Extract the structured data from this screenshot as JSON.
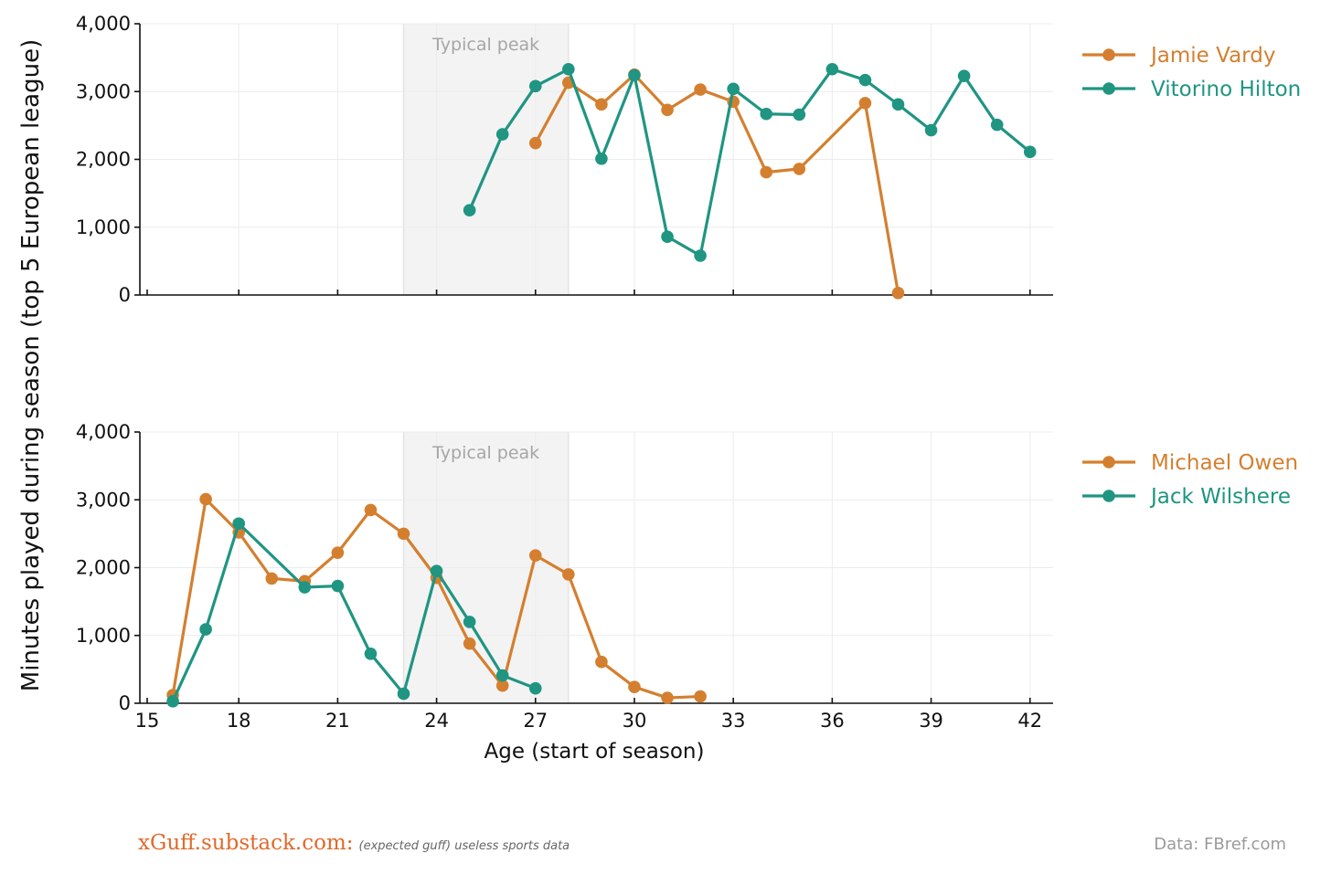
{
  "chart_data": [
    {
      "type": "line",
      "panel": "top",
      "title": "",
      "xlabel": "",
      "ylabel": "Minutes played during season (top 5 European league)",
      "xlim": [
        15,
        42.7
      ],
      "ylim": [
        0,
        4000
      ],
      "x_ticks": [
        15,
        18,
        21,
        24,
        27,
        30,
        33,
        36,
        39,
        42
      ],
      "y_ticks": [
        0,
        1000,
        2000,
        3000,
        4000
      ],
      "y_tick_labels": [
        "0",
        "1,000",
        "2,000",
        "3,000",
        "4,000"
      ],
      "grid": true,
      "legend_position": "right",
      "peak_band": {
        "x_start": 23,
        "x_end": 28,
        "label": "Typical peak"
      },
      "series": [
        {
          "name": "Jamie Vardy",
          "color": "#d47f2f",
          "x": [
            27,
            28,
            29,
            30,
            31,
            32,
            33,
            34,
            35,
            37,
            38
          ],
          "values": [
            2240,
            3130,
            2810,
            3250,
            2730,
            3030,
            2850,
            1810,
            1860,
            2830,
            30
          ]
        },
        {
          "name": "Vitorino Hilton",
          "color": "#1f9582",
          "x": [
            25,
            26,
            27,
            28,
            29,
            30,
            31,
            32,
            33,
            34,
            35,
            36,
            37,
            38,
            39,
            40,
            41,
            42
          ],
          "values": [
            1250,
            2370,
            3080,
            3330,
            2010,
            3240,
            860,
            580,
            3040,
            2670,
            2660,
            3330,
            3170,
            2810,
            2430,
            3230,
            2510,
            2110
          ]
        }
      ]
    },
    {
      "type": "line",
      "panel": "bottom",
      "title": "",
      "xlabel": "Age (start of season)",
      "ylabel": "Minutes played during season (top 5 European league)",
      "xlim": [
        15,
        42.7
      ],
      "ylim": [
        0,
        4000
      ],
      "x_ticks": [
        15,
        18,
        21,
        24,
        27,
        30,
        33,
        36,
        39,
        42
      ],
      "y_ticks": [
        0,
        1000,
        2000,
        3000,
        4000
      ],
      "y_tick_labels": [
        "0",
        "1,000",
        "2,000",
        "3,000",
        "4,000"
      ],
      "grid": true,
      "legend_position": "right",
      "peak_band": {
        "x_start": 23,
        "x_end": 28,
        "label": "Typical peak"
      },
      "series": [
        {
          "name": "Michael Owen",
          "color": "#d47f2f",
          "x": [
            16,
            17,
            18,
            19,
            20,
            21,
            22,
            23,
            24,
            25,
            26,
            27,
            28,
            29,
            30,
            31,
            32
          ],
          "values": [
            120,
            3010,
            2520,
            1840,
            1800,
            2220,
            2850,
            2500,
            1850,
            880,
            260,
            2180,
            1900,
            610,
            240,
            80,
            100
          ]
        },
        {
          "name": "Jack Wilshere",
          "color": "#1f9582",
          "x": [
            16,
            17,
            18,
            20,
            21,
            22,
            23,
            24,
            25,
            26,
            27
          ],
          "values": [
            30,
            1090,
            2650,
            1710,
            1730,
            730,
            140,
            1950,
            1200,
            410,
            220
          ]
        }
      ]
    }
  ],
  "footer": {
    "brand": "xGuff.substack.com:",
    "tagline": "(expected guff) useless sports data",
    "source": "Data:  FBref.com"
  }
}
